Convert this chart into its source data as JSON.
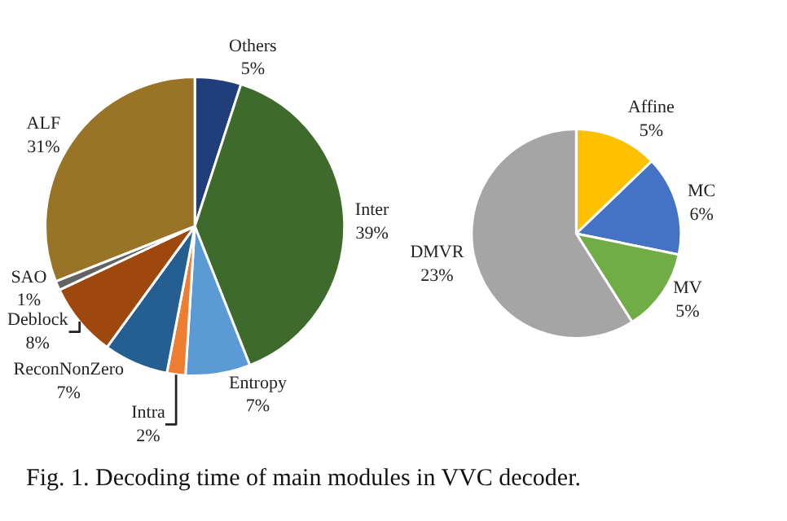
{
  "chart_data": [
    {
      "type": "pie",
      "categories": [
        "Others",
        "Inter",
        "Entropy",
        "Intra",
        "ReconNonZero",
        "Deblock",
        "SAO",
        "ALF"
      ],
      "values": [
        5,
        39,
        7,
        2,
        7,
        8,
        1,
        31
      ],
      "value_labels": [
        "5%",
        "39%",
        "7%",
        "2%",
        "7%",
        "8%",
        "1%",
        "31%"
      ],
      "colors": [
        "#203f7a",
        "#3e6b2c",
        "#5b9bd5",
        "#ed7d31",
        "#255e91",
        "#9e480e",
        "#636363",
        "#997326"
      ],
      "annotations": [
        "Fig. 1. Decoding time of main modules in VVC decoder."
      ]
    },
    {
      "type": "pie",
      "categories": [
        "Affine",
        "MC",
        "MV",
        "DMVR"
      ],
      "values": [
        5,
        6,
        5,
        23
      ],
      "value_labels": [
        "5%",
        "6%",
        "5%",
        "23%"
      ],
      "colors": [
        "#ffc000",
        "#4472c4",
        "#70ad47",
        "#a5a5a5"
      ]
    }
  ]
}
